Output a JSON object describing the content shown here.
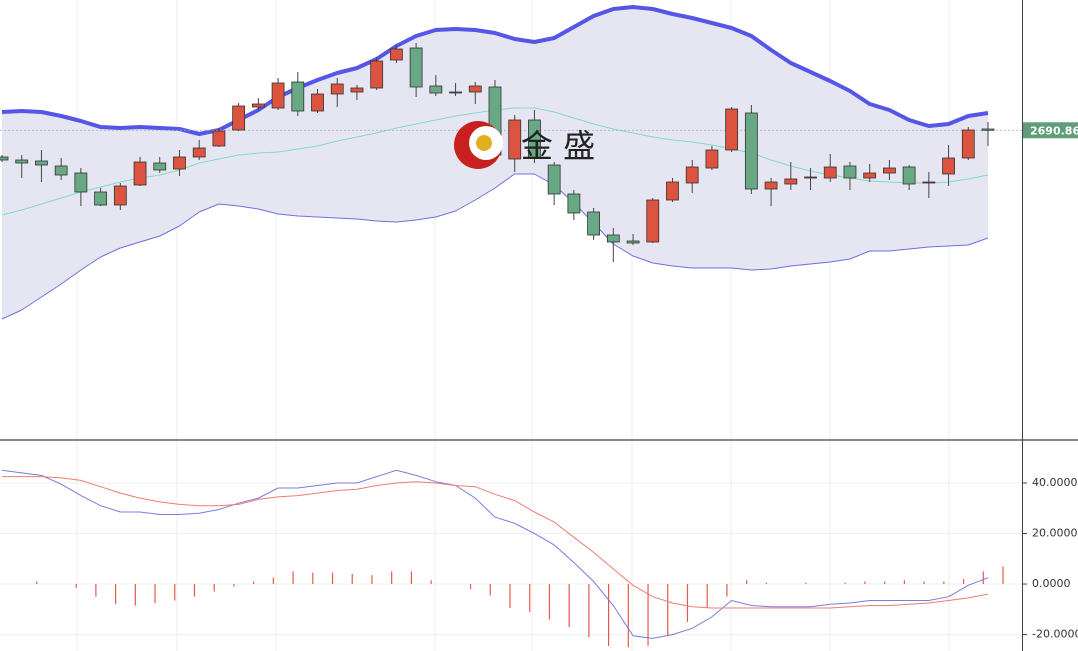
{
  "chart_data": [
    {
      "type": "candlestick",
      "ylim": [
        2536,
        2756
      ],
      "up_color": "#dc5340",
      "down_color": "#69a884",
      "open": [
        2677.5,
        2676,
        2675.5,
        2673,
        2669.5,
        2660,
        2653.5,
        2663.5,
        2674.5,
        2671.5,
        2677.5,
        2683,
        2691,
        2702.5,
        2702,
        2715,
        2700.5,
        2709,
        2710,
        2712,
        2726,
        2732,
        2713,
        2710,
        2710,
        2712.5,
        2676.5,
        2696,
        2673.5,
        2659,
        2650,
        2638.5,
        2635.5,
        2635,
        2656,
        2664.5,
        2672,
        2681,
        2699.5,
        2661.5,
        2664,
        2667,
        2667,
        2673,
        2667,
        2669.5,
        2672.5,
        2664.5,
        2669,
        2677,
        2691.5
      ],
      "high": [
        2678.5,
        2678.5,
        2681,
        2677,
        2672,
        2662,
        2664.5,
        2677.5,
        2677.5,
        2681,
        2686,
        2692,
        2704.5,
        2707,
        2717,
        2720,
        2711.5,
        2717,
        2713.5,
        2727.5,
        2733.5,
        2734.5,
        2718.5,
        2714.5,
        2715,
        2716,
        2698.5,
        2701,
        2675,
        2661,
        2652,
        2642,
        2639,
        2657,
        2667,
        2676,
        2683,
        2702.5,
        2703.5,
        2667,
        2675,
        2672,
        2679,
        2675,
        2674,
        2676,
        2673.5,
        2670,
        2683.5,
        2692.5,
        2695
      ],
      "low": [
        2675,
        2667,
        2665,
        2666,
        2653,
        2653,
        2651,
        2663,
        2669.5,
        2668,
        2676,
        2682.5,
        2690.5,
        2701,
        2701,
        2698,
        2699.5,
        2702.5,
        2706,
        2711,
        2724.5,
        2707.5,
        2708,
        2708,
        2704,
        2675,
        2670,
        2674.5,
        2653.5,
        2646,
        2636,
        2625,
        2633.5,
        2634.5,
        2655,
        2659.5,
        2671,
        2680,
        2659,
        2653,
        2661,
        2661,
        2665,
        2661,
        2665,
        2666,
        2661,
        2657,
        2663,
        2676,
        2683
      ],
      "close": [
        2676,
        2674.5,
        2673.5,
        2668.5,
        2660,
        2653.5,
        2663,
        2675,
        2671,
        2677.5,
        2682,
        2690.5,
        2703,
        2704,
        2714.5,
        2700.5,
        2709,
        2714,
        2712,
        2725.5,
        2731.5,
        2712.5,
        2709.5,
        2709.5,
        2713,
        2678.5,
        2696,
        2677,
        2659,
        2649.5,
        2638.5,
        2635,
        2634.5,
        2656,
        2665,
        2672.5,
        2681,
        2701.5,
        2661.5,
        2665,
        2666.5,
        2667.5,
        2672.5,
        2667,
        2669.5,
        2672,
        2664,
        2665,
        2677,
        2691,
        2690.86
      ],
      "bands": [
        {
          "color": "#5555e6",
          "values": [
            2700,
            2700.5,
            2700,
            2698,
            2695.5,
            2692.5,
            2692,
            2692.5,
            2692,
            2691.5,
            2689,
            2691,
            2696,
            2701,
            2707.5,
            2712,
            2716,
            2719.5,
            2722,
            2726.5,
            2733,
            2738,
            2741,
            2741.5,
            2741,
            2739.5,
            2736.5,
            2735,
            2737,
            2742.5,
            2748,
            2751.5,
            2752.5,
            2751.5,
            2749,
            2747,
            2744.5,
            2742,
            2738,
            2731,
            2724.5,
            2720,
            2715.5,
            2710.5,
            2704,
            2701,
            2696,
            2693,
            2694,
            2698,
            2699.5
          ]
        },
        {
          "color": "#86d9c2",
          "values": [
            2648.5,
            2651,
            2654,
            2657,
            2660,
            2662.5,
            2665,
            2667,
            2668.5,
            2671,
            2674.5,
            2676.5,
            2678.5,
            2679.5,
            2680,
            2681.5,
            2683,
            2685.5,
            2687.5,
            2689.5,
            2692,
            2694,
            2696,
            2698,
            2699.5,
            2701,
            2702,
            2702,
            2700,
            2697,
            2694,
            2691.5,
            2689.5,
            2687.5,
            2686,
            2685,
            2683.5,
            2681.5,
            2679.5,
            2676,
            2673,
            2670.5,
            2668.5,
            2667,
            2665.5,
            2665,
            2664.5,
            2664.5,
            2665,
            2666.5,
            2668.5
          ]
        },
        {
          "color": "#6f6fe0",
          "values": [
            2596.5,
            2601,
            2607.5,
            2614,
            2621,
            2627.5,
            2632,
            2635,
            2638,
            2643,
            2650,
            2654,
            2653,
            2651.5,
            2649,
            2648,
            2647.5,
            2647,
            2646.5,
            2645.5,
            2645,
            2646,
            2647.5,
            2650.5,
            2656,
            2662,
            2669,
            2669,
            2663.5,
            2654.5,
            2644.5,
            2634,
            2628,
            2624.5,
            2623,
            2622,
            2622,
            2622,
            2621,
            2621.5,
            2623,
            2624,
            2625,
            2626.5,
            2630.5,
            2630.5,
            2631.5,
            2632.5,
            2633,
            2633.5,
            2637
          ]
        }
      ],
      "band_fill": "#e6e6f2",
      "last_price": 2690.86,
      "last_price_color": "#5f9e78",
      "watermark": "金 盛"
    },
    {
      "type": "macd",
      "ylim": [
        -26.5,
        57
      ],
      "yticks": [
        {
          "value": -20,
          "label": "-20.0000"
        },
        {
          "value": 0,
          "label": "0.0000"
        },
        {
          "value": 20,
          "label": "20.0000"
        },
        {
          "value": 40,
          "label": "40.0000"
        }
      ],
      "series": [
        {
          "color": "#7b7be0",
          "values": [
            45,
            44,
            43,
            39.5,
            35,
            31,
            28.5,
            28.5,
            27.5,
            27.5,
            28,
            29.5,
            32,
            34,
            38,
            38,
            39,
            40,
            40,
            42.5,
            45,
            43,
            40.5,
            39,
            34,
            26.5,
            24,
            20,
            15.5,
            8.5,
            1,
            -8.5,
            -20.5,
            -21.5,
            -20,
            -17.5,
            -13,
            -6.5,
            -8.5,
            -9,
            -9,
            -9,
            -8,
            -7.5,
            -6.5,
            -6.5,
            -6.5,
            -6.5,
            -5,
            -0.5,
            2.5
          ]
        },
        {
          "color": "#ee7d72",
          "values": [
            42.5,
            42.5,
            42.5,
            42,
            41,
            38.5,
            36,
            34,
            32.5,
            31.5,
            31,
            31,
            31.5,
            33.5,
            34.5,
            35,
            36,
            37,
            37.5,
            39,
            40,
            40.5,
            40,
            39,
            38.5,
            35.5,
            33,
            28.5,
            24.5,
            18.5,
            12.5,
            6,
            -0.5,
            -5,
            -7.5,
            -9,
            -9.5,
            -9.5,
            -9.5,
            -9.5,
            -9.5,
            -9.5,
            -9.5,
            -9,
            -8.5,
            -8.5,
            -8,
            -7.5,
            -6.5,
            -5.5,
            -4
          ]
        }
      ],
      "histogram": {
        "color": "#e8574c",
        "values": [
          0,
          1,
          0,
          -1.5,
          -5,
          -8,
          -8.5,
          -7.5,
          -6.5,
          -5,
          -3,
          -1,
          1,
          2.5,
          5,
          4.5,
          4.5,
          4,
          3.5,
          5,
          5,
          1.5,
          0,
          -2,
          -4.5,
          -9.5,
          -11,
          -14,
          -17,
          -21,
          -24.5,
          -25,
          -24.5,
          -20.5,
          -15,
          -9.5,
          -5,
          1.5,
          0.5,
          0,
          0.5,
          0,
          0.5,
          1,
          1,
          1.5,
          1,
          1,
          2,
          5,
          7
        ]
      },
      "grid": true
    }
  ]
}
